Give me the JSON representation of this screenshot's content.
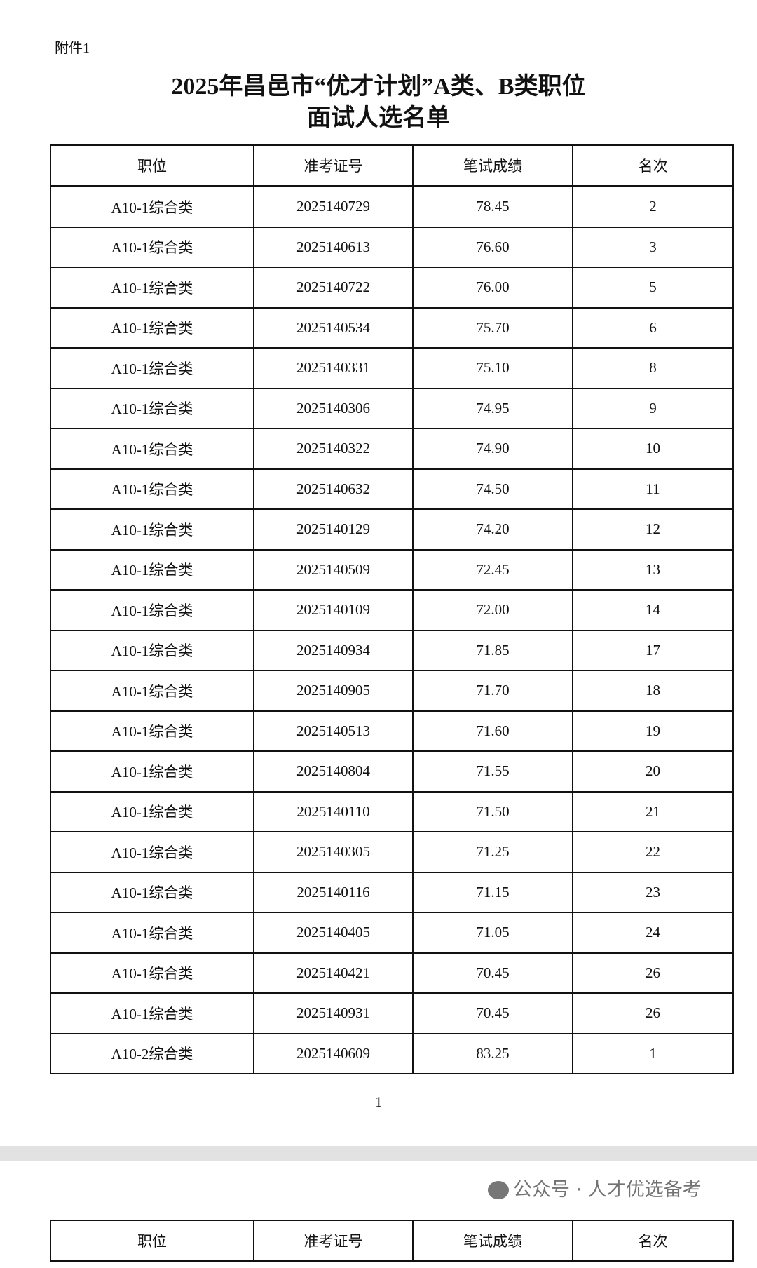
{
  "attachment_label": "附件1",
  "title_line1": "2025年昌邑市“优才计划”A类、B类职位",
  "title_line2": "面试人选名单",
  "table": {
    "headers": [
      "职位",
      "准考证号",
      "笔试成绩",
      "名次"
    ],
    "rows": [
      [
        "A10-1综合类",
        "2025140729",
        "78.45",
        "2"
      ],
      [
        "A10-1综合类",
        "2025140613",
        "76.60",
        "3"
      ],
      [
        "A10-1综合类",
        "2025140722",
        "76.00",
        "5"
      ],
      [
        "A10-1综合类",
        "2025140534",
        "75.70",
        "6"
      ],
      [
        "A10-1综合类",
        "2025140331",
        "75.10",
        "8"
      ],
      [
        "A10-1综合类",
        "2025140306",
        "74.95",
        "9"
      ],
      [
        "A10-1综合类",
        "2025140322",
        "74.90",
        "10"
      ],
      [
        "A10-1综合类",
        "2025140632",
        "74.50",
        "11"
      ],
      [
        "A10-1综合类",
        "2025140129",
        "74.20",
        "12"
      ],
      [
        "A10-1综合类",
        "2025140509",
        "72.45",
        "13"
      ],
      [
        "A10-1综合类",
        "2025140109",
        "72.00",
        "14"
      ],
      [
        "A10-1综合类",
        "2025140934",
        "71.85",
        "17"
      ],
      [
        "A10-1综合类",
        "2025140905",
        "71.70",
        "18"
      ],
      [
        "A10-1综合类",
        "2025140513",
        "71.60",
        "19"
      ],
      [
        "A10-1综合类",
        "2025140804",
        "71.55",
        "20"
      ],
      [
        "A10-1综合类",
        "2025140110",
        "71.50",
        "21"
      ],
      [
        "A10-1综合类",
        "2025140305",
        "71.25",
        "22"
      ],
      [
        "A10-1综合类",
        "2025140116",
        "71.15",
        "23"
      ],
      [
        "A10-1综合类",
        "2025140405",
        "71.05",
        "24"
      ],
      [
        "A10-1综合类",
        "2025140421",
        "70.45",
        "26"
      ],
      [
        "A10-1综合类",
        "2025140931",
        "70.45",
        "26"
      ],
      [
        "A10-2综合类",
        "2025140609",
        "83.25",
        "1"
      ]
    ]
  },
  "page_number": "1",
  "watermark": {
    "text": "公众号 · 人才优选备考",
    "icon": "wechat-icon"
  }
}
